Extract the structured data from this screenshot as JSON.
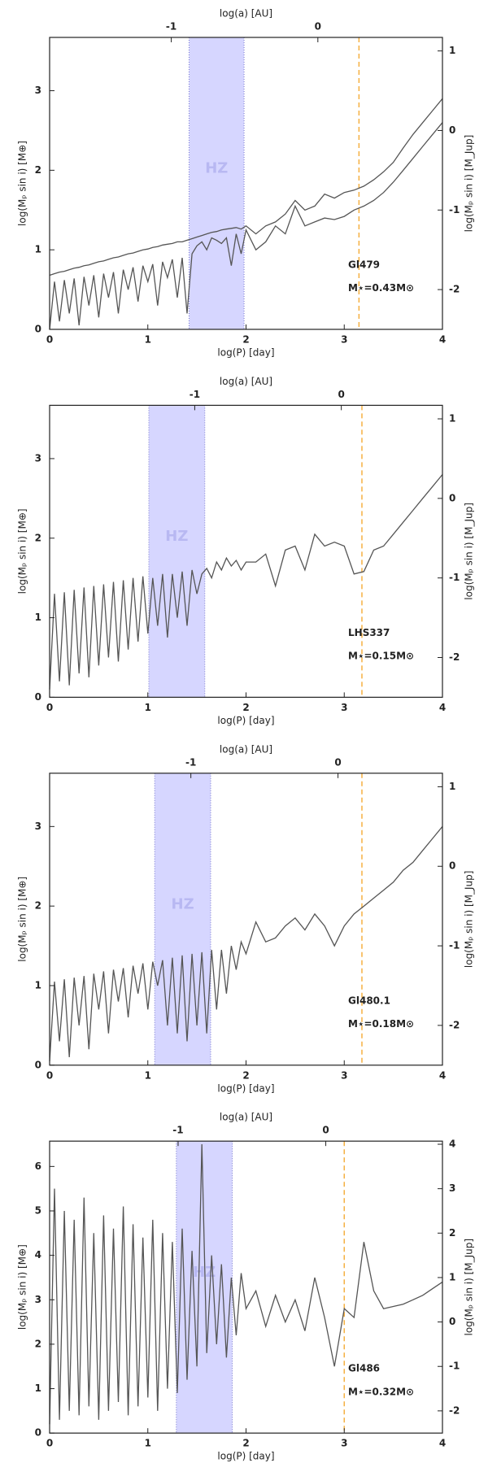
{
  "chart_data": [
    {
      "type": "line",
      "x2label": "log(a) [AU]",
      "xlabel": "log(P) [day]",
      "ylabel": "log(Mₚ sin i) [M⊕]",
      "y2label": "log(Mₚ sin i) [M_Jup]",
      "xlim": [
        0,
        4
      ],
      "xticks": [
        0,
        1,
        2,
        3,
        4
      ],
      "x2lim": [
        -1.83,
        0.85
      ],
      "x2ticks": [
        -1,
        0
      ],
      "ylim": [
        0,
        3.67
      ],
      "yticks": [
        0,
        1,
        2,
        3
      ],
      "y2lim": [
        -2.5,
        1.17
      ],
      "y2ticks": [
        -2,
        -1,
        0,
        1
      ],
      "hz_band": [
        1.42,
        1.98
      ],
      "hz_label": "HZ",
      "dashed_x": 3.15,
      "star": "Gl479",
      "mass_label": "M⋆=0.43M⊙",
      "hz_color": "#d6d6ff",
      "dashed_color": "#f5b041",
      "x": [
        0,
        0.05,
        0.1,
        0.15,
        0.2,
        0.25,
        0.3,
        0.35,
        0.4,
        0.45,
        0.5,
        0.55,
        0.6,
        0.65,
        0.7,
        0.75,
        0.8,
        0.85,
        0.9,
        0.95,
        1,
        1.05,
        1.1,
        1.15,
        1.2,
        1.25,
        1.3,
        1.35,
        1.4,
        1.45,
        1.5,
        1.55,
        1.6,
        1.65,
        1.7,
        1.75,
        1.8,
        1.85,
        1.9,
        1.95,
        2,
        2.1,
        2.2,
        2.3,
        2.4,
        2.5,
        2.6,
        2.7,
        2.8,
        2.9,
        3,
        3.1,
        3.2,
        3.3,
        3.4,
        3.5,
        3.6,
        3.7,
        3.8,
        3.9,
        4
      ],
      "series": [
        {
          "color": "#555555",
          "values": [
            0.68,
            0.7,
            0.72,
            0.73,
            0.75,
            0.77,
            0.78,
            0.8,
            0.81,
            0.83,
            0.85,
            0.86,
            0.88,
            0.9,
            0.91,
            0.93,
            0.95,
            0.96,
            0.98,
            1.0,
            1.01,
            1.03,
            1.04,
            1.06,
            1.07,
            1.08,
            1.1,
            1.1,
            1.12,
            1.14,
            1.16,
            1.18,
            1.2,
            1.22,
            1.23,
            1.25,
            1.26,
            1.27,
            1.28,
            1.26,
            1.3,
            1.2,
            1.3,
            1.35,
            1.45,
            1.62,
            1.5,
            1.55,
            1.7,
            1.65,
            1.72,
            1.75,
            1.8,
            1.88,
            1.98,
            2.1,
            2.28,
            2.45,
            2.6,
            2.75,
            2.9
          ]
        },
        {
          "color": "#555555",
          "values": [
            0.0,
            0.6,
            0.1,
            0.62,
            0.2,
            0.64,
            0.05,
            0.66,
            0.3,
            0.68,
            0.15,
            0.7,
            0.4,
            0.72,
            0.2,
            0.75,
            0.5,
            0.78,
            0.35,
            0.8,
            0.6,
            0.82,
            0.3,
            0.85,
            0.65,
            0.88,
            0.4,
            0.9,
            0.2,
            0.95,
            1.05,
            1.1,
            1.0,
            1.15,
            1.12,
            1.08,
            1.15,
            0.8,
            1.2,
            0.95,
            1.25,
            1.0,
            1.1,
            1.3,
            1.2,
            1.55,
            1.3,
            1.35,
            1.4,
            1.38,
            1.42,
            1.5,
            1.55,
            1.62,
            1.72,
            1.85,
            2.0,
            2.15,
            2.3,
            2.45,
            2.6
          ]
        }
      ]
    },
    {
      "type": "line",
      "x2label": "log(a) [AU]",
      "xlabel": "log(P) [day]",
      "ylabel": "log(Mₚ sin i) [M⊕]",
      "y2label": "log(Mₚ sin i) [M_Jup]",
      "xlim": [
        0,
        4
      ],
      "xticks": [
        0,
        1,
        2,
        3,
        4
      ],
      "x2lim": [
        -1.99,
        0.69
      ],
      "x2ticks": [
        -1,
        0
      ],
      "ylim": [
        0,
        3.67
      ],
      "yticks": [
        0,
        1,
        2,
        3
      ],
      "y2lim": [
        -2.5,
        1.17
      ],
      "y2ticks": [
        -2,
        -1,
        0,
        1
      ],
      "hz_band": [
        1.01,
        1.58
      ],
      "hz_label": "HZ",
      "dashed_x": 3.18,
      "star": "LHS337",
      "mass_label": "M⋆=0.15M⊙",
      "hz_color": "#d6d6ff",
      "dashed_color": "#f5b041",
      "x": [
        0,
        0.05,
        0.1,
        0.15,
        0.2,
        0.25,
        0.3,
        0.35,
        0.4,
        0.45,
        0.5,
        0.55,
        0.6,
        0.65,
        0.7,
        0.75,
        0.8,
        0.85,
        0.9,
        0.95,
        1,
        1.05,
        1.1,
        1.15,
        1.2,
        1.25,
        1.3,
        1.35,
        1.4,
        1.45,
        1.5,
        1.55,
        1.6,
        1.65,
        1.7,
        1.75,
        1.8,
        1.85,
        1.9,
        1.95,
        2,
        2.1,
        2.2,
        2.3,
        2.4,
        2.5,
        2.6,
        2.7,
        2.8,
        2.9,
        3,
        3.1,
        3.2,
        3.3,
        3.4,
        3.5,
        3.6,
        3.7,
        3.8,
        3.9,
        4
      ],
      "series": [
        {
          "color": "#555555",
          "values": [
            0.1,
            1.3,
            0.2,
            1.32,
            0.15,
            1.35,
            0.3,
            1.38,
            0.25,
            1.4,
            0.4,
            1.42,
            0.5,
            1.45,
            0.45,
            1.47,
            0.6,
            1.5,
            0.7,
            1.52,
            0.8,
            1.5,
            0.9,
            1.55,
            0.75,
            1.55,
            1.0,
            1.58,
            0.9,
            1.6,
            1.3,
            1.55,
            1.62,
            1.5,
            1.7,
            1.6,
            1.75,
            1.65,
            1.72,
            1.6,
            1.7,
            1.7,
            1.8,
            1.4,
            1.85,
            1.9,
            1.6,
            2.05,
            1.9,
            1.95,
            1.9,
            1.55,
            1.58,
            1.85,
            1.9,
            2.05,
            2.2,
            2.35,
            2.5,
            2.65,
            2.8
          ]
        }
      ]
    },
    {
      "type": "line",
      "x2label": "log(a) [AU]",
      "xlabel": "log(P) [day]",
      "ylabel": "log(Mₚ sin i) [M⊕]",
      "y2label": "log(Mₚ sin i) [M_Jup]",
      "xlim": [
        0,
        4
      ],
      "xticks": [
        0,
        1,
        2,
        3,
        4
      ],
      "x2lim": [
        -1.96,
        0.71
      ],
      "x2ticks": [
        -1,
        0
      ],
      "ylim": [
        0,
        3.67
      ],
      "yticks": [
        0,
        1,
        2,
        3
      ],
      "y2lim": [
        -2.5,
        1.17
      ],
      "y2ticks": [
        -2,
        -1,
        0,
        1
      ],
      "hz_band": [
        1.07,
        1.64
      ],
      "hz_label": "HZ",
      "dashed_x": 3.18,
      "star": "Gl480.1",
      "mass_label": "M⋆=0.18M⊙",
      "hz_color": "#d6d6ff",
      "dashed_color": "#f5b041",
      "x": [
        0,
        0.05,
        0.1,
        0.15,
        0.2,
        0.25,
        0.3,
        0.35,
        0.4,
        0.45,
        0.5,
        0.55,
        0.6,
        0.65,
        0.7,
        0.75,
        0.8,
        0.85,
        0.9,
        0.95,
        1,
        1.05,
        1.1,
        1.15,
        1.2,
        1.25,
        1.3,
        1.35,
        1.4,
        1.45,
        1.5,
        1.55,
        1.6,
        1.65,
        1.7,
        1.75,
        1.8,
        1.85,
        1.9,
        1.95,
        2,
        2.1,
        2.2,
        2.3,
        2.4,
        2.5,
        2.6,
        2.7,
        2.8,
        2.9,
        3,
        3.1,
        3.2,
        3.3,
        3.4,
        3.5,
        3.6,
        3.7,
        3.8,
        3.9,
        4
      ],
      "series": [
        {
          "color": "#555555",
          "values": [
            0.05,
            1.05,
            0.3,
            1.08,
            0.1,
            1.1,
            0.5,
            1.12,
            0.2,
            1.15,
            0.7,
            1.18,
            0.4,
            1.2,
            0.8,
            1.22,
            0.6,
            1.25,
            0.9,
            1.28,
            0.7,
            1.3,
            1.0,
            1.32,
            0.5,
            1.35,
            0.4,
            1.38,
            0.3,
            1.4,
            0.5,
            1.42,
            0.4,
            1.45,
            0.7,
            1.45,
            0.9,
            1.5,
            1.2,
            1.55,
            1.4,
            1.8,
            1.55,
            1.6,
            1.75,
            1.85,
            1.7,
            1.9,
            1.75,
            1.5,
            1.75,
            1.9,
            2.0,
            2.1,
            2.2,
            2.3,
            2.45,
            2.55,
            2.7,
            2.85,
            3.0
          ]
        }
      ]
    },
    {
      "type": "line",
      "x2label": "log(a) [AU]",
      "xlabel": "log(P) [day]",
      "ylabel": "log(Mₚ sin i) [M⊕]",
      "y2label": "log(Mₚ sin i) [M_Jup]",
      "xlim": [
        0,
        4
      ],
      "xticks": [
        0,
        1,
        2,
        3,
        4
      ],
      "x2lim": [
        -1.87,
        0.79
      ],
      "x2ticks": [
        -1,
        0
      ],
      "ylim": [
        0,
        6.57
      ],
      "yticks": [
        0,
        1,
        2,
        3,
        4,
        5,
        6
      ],
      "y2lim": [
        -2.5,
        4.07
      ],
      "y2ticks": [
        -2,
        -1,
        0,
        1,
        2,
        3,
        4
      ],
      "hz_band": [
        1.29,
        1.86
      ],
      "hz_label": "HZ",
      "dashed_x": 3.0,
      "star": "Gl486",
      "mass_label": "M⋆=0.32M⊙",
      "hz_color": "#d6d6ff",
      "dashed_color": "#f5b041",
      "x": [
        0,
        0.05,
        0.1,
        0.15,
        0.2,
        0.25,
        0.3,
        0.35,
        0.4,
        0.45,
        0.5,
        0.55,
        0.6,
        0.65,
        0.7,
        0.75,
        0.8,
        0.85,
        0.9,
        0.95,
        1,
        1.05,
        1.1,
        1.15,
        1.2,
        1.25,
        1.3,
        1.35,
        1.4,
        1.45,
        1.5,
        1.55,
        1.6,
        1.65,
        1.7,
        1.75,
        1.8,
        1.85,
        1.9,
        1.95,
        2,
        2.1,
        2.2,
        2.3,
        2.4,
        2.5,
        2.6,
        2.7,
        2.8,
        2.9,
        3,
        3.1,
        3.2,
        3.3,
        3.4,
        3.5,
        3.6,
        3.7,
        3.8,
        3.9,
        4
      ],
      "series": [
        {
          "color": "#555555",
          "values": [
            0.2,
            5.5,
            0.3,
            5.0,
            0.5,
            4.8,
            0.4,
            5.3,
            0.6,
            4.5,
            0.3,
            4.9,
            0.5,
            4.6,
            0.7,
            5.1,
            0.4,
            4.7,
            0.6,
            4.4,
            0.8,
            4.8,
            0.5,
            4.5,
            1.0,
            4.3,
            0.9,
            4.6,
            1.2,
            4.1,
            1.5,
            6.5,
            1.8,
            4.0,
            2.0,
            3.8,
            1.7,
            3.5,
            2.2,
            3.6,
            2.8,
            3.2,
            2.4,
            3.1,
            2.5,
            3.0,
            2.3,
            3.5,
            2.6,
            1.5,
            2.8,
            2.6,
            4.3,
            3.2,
            2.8,
            2.85,
            2.9,
            3.0,
            3.1,
            3.25,
            3.4
          ]
        }
      ]
    }
  ]
}
